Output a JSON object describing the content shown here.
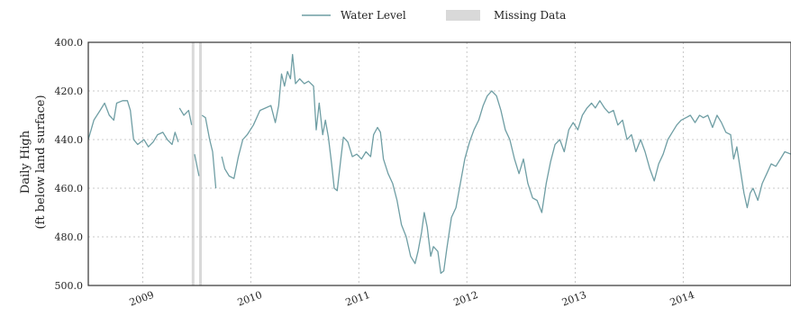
{
  "chart_data": {
    "type": "line",
    "title": "",
    "ylabel_lines": [
      "Daily High",
      "(ft below land surface)"
    ],
    "xlabel": "",
    "y_inverted": true,
    "ylim": [
      400,
      500
    ],
    "y_ticks": [
      "400.0",
      "420.0",
      "440.0",
      "460.0",
      "480.0",
      "500.0"
    ],
    "xlim": [
      "2008-07-01",
      "2014-12-31"
    ],
    "x_ticks": [
      {
        "date": "2009-01-01",
        "label": "2009"
      },
      {
        "date": "2010-01-01",
        "label": "2010"
      },
      {
        "date": "2011-01-01",
        "label": "2011"
      },
      {
        "date": "2012-01-01",
        "label": "2012"
      },
      {
        "date": "2013-01-01",
        "label": "2013"
      },
      {
        "date": "2014-01-01",
        "label": "2014"
      }
    ],
    "grid": true,
    "legend_position": "top-center",
    "legend": [
      {
        "label": "Water Level",
        "kind": "line",
        "color": "#6f9ea4"
      },
      {
        "label": "Missing Data",
        "kind": "patch",
        "color": "#d9d9d9"
      }
    ],
    "series": [
      {
        "name": "Water Level",
        "color": "#6f9ea4",
        "segments": [
          [
            [
              "2008-07-01",
              440
            ],
            [
              "2008-07-20",
              432
            ],
            [
              "2008-08-10",
              428
            ],
            [
              "2008-08-25",
              425
            ],
            [
              "2008-09-10",
              430
            ],
            [
              "2008-09-25",
              432
            ],
            [
              "2008-10-05",
              425
            ],
            [
              "2008-10-25",
              424
            ],
            [
              "2008-11-10",
              424
            ],
            [
              "2008-11-20",
              428
            ],
            [
              "2008-12-01",
              440
            ],
            [
              "2008-12-15",
              442
            ],
            [
              "2009-01-05",
              440
            ],
            [
              "2009-01-20",
              443
            ],
            [
              "2009-02-05",
              441
            ],
            [
              "2009-02-20",
              438
            ],
            [
              "2009-03-10",
              437
            ],
            [
              "2009-03-25",
              440
            ],
            [
              "2009-04-10",
              442
            ],
            [
              "2009-04-20",
              437
            ],
            [
              "2009-05-01",
              441
            ]
          ],
          [
            [
              "2009-05-05",
              427
            ],
            [
              "2009-05-20",
              430
            ],
            [
              "2009-06-05",
              428
            ],
            [
              "2009-06-15",
              434
            ]
          ],
          [
            [
              "2009-06-25",
              446
            ],
            [
              "2009-07-10",
              455
            ]
          ],
          [
            [
              "2009-07-20",
              430
            ],
            [
              "2009-08-01",
              431
            ],
            [
              "2009-08-15",
              440
            ],
            [
              "2009-08-25",
              445
            ],
            [
              "2009-09-05",
              460
            ]
          ],
          [
            [
              "2009-09-25",
              447
            ],
            [
              "2009-10-05",
              452
            ],
            [
              "2009-10-20",
              455
            ],
            [
              "2009-11-05",
              456
            ],
            [
              "2009-11-20",
              447
            ],
            [
              "2009-12-05",
              440
            ],
            [
              "2009-12-20",
              438
            ],
            [
              "2010-01-10",
              434
            ],
            [
              "2010-02-01",
              428
            ],
            [
              "2010-02-20",
              427
            ],
            [
              "2010-03-10",
              426
            ],
            [
              "2010-03-25",
              433
            ],
            [
              "2010-04-05",
              426
            ],
            [
              "2010-04-15",
              413
            ],
            [
              "2010-04-25",
              418
            ],
            [
              "2010-05-05",
              412
            ],
            [
              "2010-05-15",
              415
            ],
            [
              "2010-05-22",
              405
            ],
            [
              "2010-06-01",
              417
            ],
            [
              "2010-06-15",
              415
            ],
            [
              "2010-07-01",
              417
            ],
            [
              "2010-07-15",
              416
            ],
            [
              "2010-08-01",
              418
            ],
            [
              "2010-08-10",
              436
            ],
            [
              "2010-08-20",
              425
            ],
            [
              "2010-09-01",
              438
            ],
            [
              "2010-09-10",
              432
            ],
            [
              "2010-09-20",
              439
            ],
            [
              "2010-10-01",
              450
            ],
            [
              "2010-10-10",
              460
            ],
            [
              "2010-10-20",
              461
            ],
            [
              "2010-11-01",
              448
            ],
            [
              "2010-11-10",
              439
            ],
            [
              "2010-11-25",
              441
            ],
            [
              "2010-12-10",
              447
            ],
            [
              "2010-12-25",
              446
            ],
            [
              "2011-01-10",
              448
            ],
            [
              "2011-01-25",
              445
            ],
            [
              "2011-02-10",
              447
            ],
            [
              "2011-02-20",
              438
            ],
            [
              "2011-03-05",
              435
            ],
            [
              "2011-03-15",
              437
            ],
            [
              "2011-03-25",
              448
            ],
            [
              "2011-04-10",
              454
            ],
            [
              "2011-04-25",
              458
            ],
            [
              "2011-05-10",
              465
            ],
            [
              "2011-05-25",
              475
            ],
            [
              "2011-06-10",
              480
            ],
            [
              "2011-06-25",
              488
            ],
            [
              "2011-07-10",
              491
            ],
            [
              "2011-07-20",
              486
            ],
            [
              "2011-08-01",
              478
            ],
            [
              "2011-08-10",
              470
            ],
            [
              "2011-08-20",
              476
            ],
            [
              "2011-09-01",
              488
            ],
            [
              "2011-09-10",
              484
            ],
            [
              "2011-09-25",
              486
            ],
            [
              "2011-10-05",
              495
            ],
            [
              "2011-10-15",
              494
            ],
            [
              "2011-10-25",
              485
            ],
            [
              "2011-11-10",
              472
            ],
            [
              "2011-11-25",
              468
            ],
            [
              "2011-12-10",
              458
            ],
            [
              "2011-12-25",
              448
            ],
            [
              "2012-01-10",
              441
            ],
            [
              "2012-01-25",
              436
            ],
            [
              "2012-02-10",
              432
            ],
            [
              "2012-02-25",
              426
            ],
            [
              "2012-03-10",
              422
            ],
            [
              "2012-03-25",
              420
            ],
            [
              "2012-04-10",
              422
            ],
            [
              "2012-04-25",
              428
            ],
            [
              "2012-05-10",
              436
            ],
            [
              "2012-05-25",
              440
            ],
            [
              "2012-06-10",
              448
            ],
            [
              "2012-06-25",
              454
            ],
            [
              "2012-07-10",
              448
            ],
            [
              "2012-07-25",
              458
            ],
            [
              "2012-08-10",
              464
            ],
            [
              "2012-08-25",
              465
            ],
            [
              "2012-09-10",
              470
            ],
            [
              "2012-09-25",
              458
            ],
            [
              "2012-10-10",
              449
            ],
            [
              "2012-10-25",
              442
            ],
            [
              "2012-11-10",
              440
            ],
            [
              "2012-11-25",
              445
            ],
            [
              "2012-12-10",
              436
            ],
            [
              "2012-12-25",
              433
            ],
            [
              "2013-01-10",
              436
            ],
            [
              "2013-01-25",
              430
            ],
            [
              "2013-02-10",
              427
            ],
            [
              "2013-02-25",
              425
            ],
            [
              "2013-03-10",
              427
            ],
            [
              "2013-03-25",
              424
            ],
            [
              "2013-04-10",
              427
            ],
            [
              "2013-04-25",
              429
            ],
            [
              "2013-05-10",
              428
            ],
            [
              "2013-05-25",
              434
            ],
            [
              "2013-06-10",
              432
            ],
            [
              "2013-06-25",
              440
            ],
            [
              "2013-07-10",
              438
            ],
            [
              "2013-07-25",
              445
            ],
            [
              "2013-08-10",
              440
            ],
            [
              "2013-08-25",
              445
            ],
            [
              "2013-09-10",
              452
            ],
            [
              "2013-09-25",
              457
            ],
            [
              "2013-10-10",
              450
            ],
            [
              "2013-10-25",
              446
            ],
            [
              "2013-11-10",
              440
            ],
            [
              "2013-11-25",
              437
            ],
            [
              "2013-12-10",
              434
            ],
            [
              "2013-12-25",
              432
            ],
            [
              "2014-01-10",
              431
            ],
            [
              "2014-01-25",
              430
            ],
            [
              "2014-02-10",
              433
            ],
            [
              "2014-02-25",
              430
            ],
            [
              "2014-03-10",
              431
            ],
            [
              "2014-03-25",
              430
            ],
            [
              "2014-04-10",
              435
            ],
            [
              "2014-04-25",
              430
            ],
            [
              "2014-05-10",
              433
            ],
            [
              "2014-05-25",
              437
            ],
            [
              "2014-06-10",
              438
            ],
            [
              "2014-06-20",
              448
            ],
            [
              "2014-07-01",
              443
            ],
            [
              "2014-07-10",
              450
            ],
            [
              "2014-07-25",
              462
            ],
            [
              "2014-08-05",
              468
            ],
            [
              "2014-08-15",
              462
            ],
            [
              "2014-08-25",
              460
            ],
            [
              "2014-09-10",
              465
            ],
            [
              "2014-09-25",
              458
            ],
            [
              "2014-10-10",
              454
            ],
            [
              "2014-10-25",
              450
            ],
            [
              "2014-11-10",
              451
            ],
            [
              "2014-11-25",
              448
            ],
            [
              "2014-12-10",
              445
            ],
            [
              "2014-12-31",
              446
            ]
          ]
        ]
      }
    ],
    "missing_data_dates": [
      "2009-06-20",
      "2009-07-15"
    ]
  }
}
